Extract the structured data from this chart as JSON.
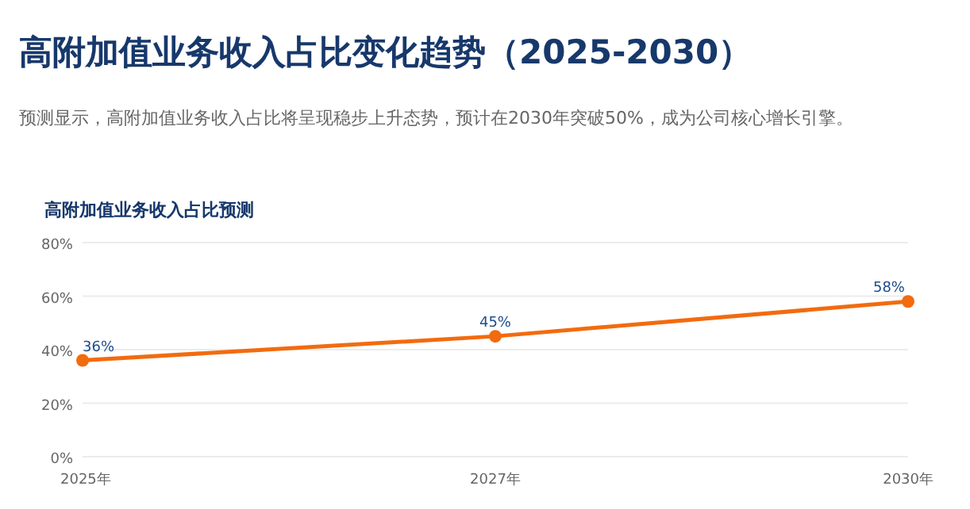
{
  "chart_data": {
    "type": "line",
    "title": "高附加值业务收入占比变化趋势（2025-2030）",
    "subtitle": "预测显示，高附加值业务收入占比将呈现稳步上升态势，预计在2030年突破50%，成为公司核心增长引擎。",
    "annotations": [
      "高附加值业务收入占比预测"
    ],
    "categories": [
      "2025年",
      "2027年",
      "2030年"
    ],
    "series": [
      {
        "color": "#f26b0f",
        "values": [
          36,
          45,
          58
        ],
        "value_labels": [
          "36%",
          "45%",
          "58%"
        ]
      }
    ],
    "ylim": [
      0,
      80
    ],
    "yticks": [
      {
        "value": 0,
        "label": "0%"
      },
      {
        "value": 20,
        "label": "20%"
      },
      {
        "value": 40,
        "label": "40%"
      },
      {
        "value": 60,
        "label": "60%"
      },
      {
        "value": 80,
        "label": "80%"
      }
    ],
    "grid": "y",
    "marker": "circle"
  }
}
